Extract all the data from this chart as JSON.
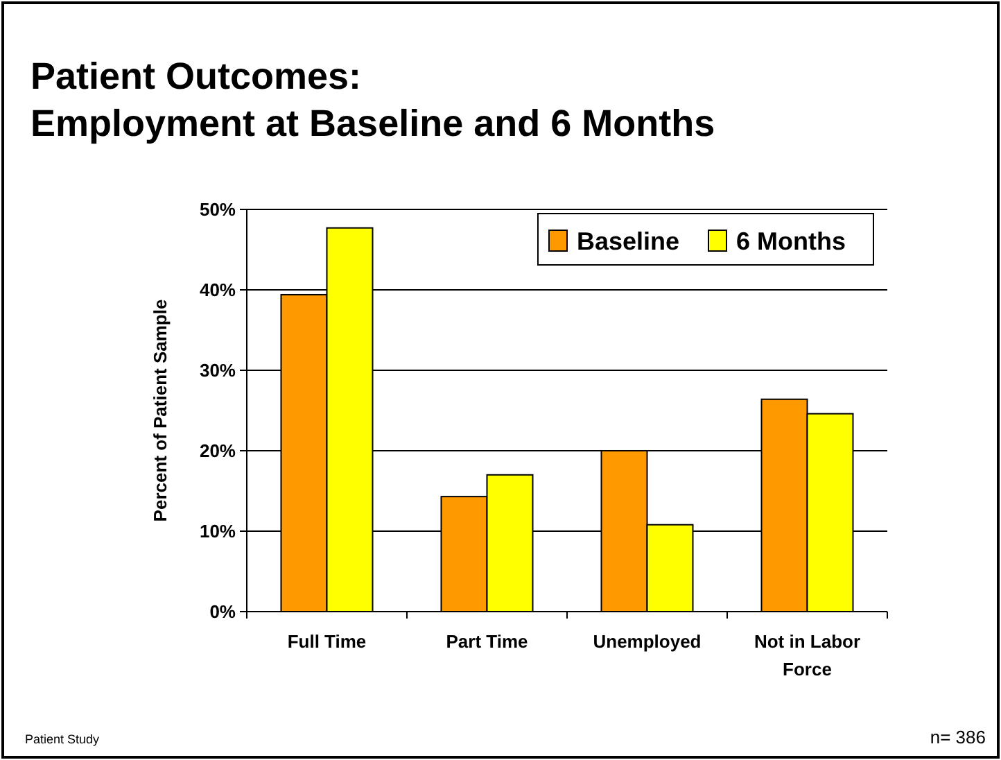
{
  "chart_data": {
    "type": "bar",
    "title": "Patient Outcomes:\nEmployment at Baseline and 6 Months",
    "ylabel": "Percent of Patient Sample",
    "categories": [
      "Full Time",
      "Part Time",
      "Unemployed",
      "Not in Labor Force"
    ],
    "series": [
      {
        "name": "Baseline",
        "color": "#ff9900",
        "values": [
          39.4,
          14.3,
          20.0,
          26.4
        ]
      },
      {
        "name": "6 Months",
        "color": "#ffff00",
        "values": [
          47.7,
          17.0,
          10.8,
          24.6
        ]
      }
    ],
    "ylim": [
      0,
      50
    ],
    "yticks": [
      {
        "value": 0,
        "label": "0%"
      },
      {
        "value": 10,
        "label": "10%"
      },
      {
        "value": 20,
        "label": "20%"
      },
      {
        "value": 30,
        "label": "30%"
      },
      {
        "value": 40,
        "label": "40%"
      },
      {
        "value": 50,
        "label": "50%"
      }
    ],
    "grid": "y",
    "legend": "top right",
    "annotations": [
      "Patient Study",
      "n= 386"
    ]
  }
}
